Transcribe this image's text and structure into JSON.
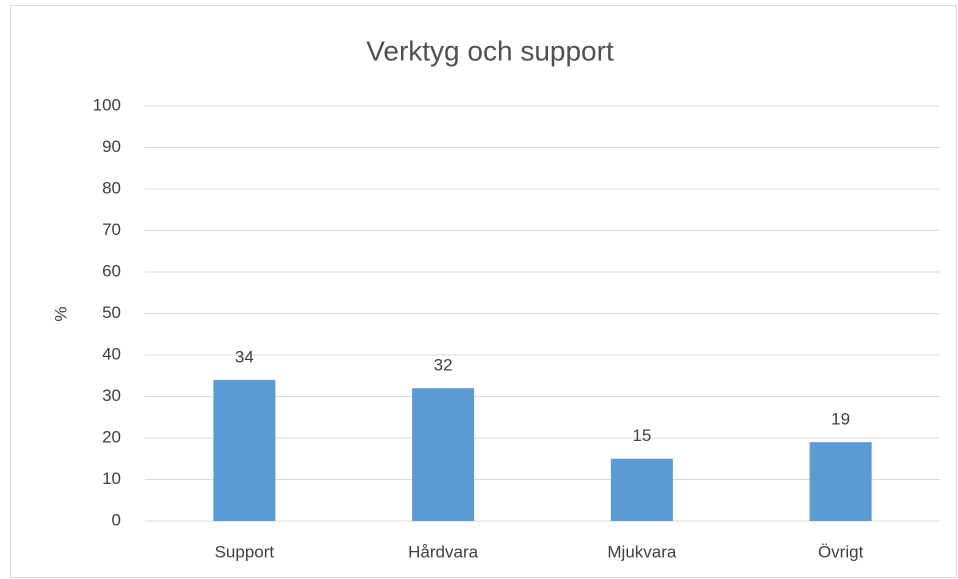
{
  "chart_data": {
    "type": "bar",
    "title": "Verktyg och support",
    "ylabel": "%",
    "categories": [
      "Support",
      "Hårdvara",
      "Mjukvara",
      "Övrigt"
    ],
    "values": [
      34,
      32,
      15,
      19
    ],
    "color": "#5b9bd5",
    "ylim": [
      0,
      100
    ],
    "yticks": [
      0,
      10,
      20,
      30,
      40,
      50,
      60,
      70,
      80,
      90,
      100
    ],
    "grid": true,
    "data_labels": true
  }
}
